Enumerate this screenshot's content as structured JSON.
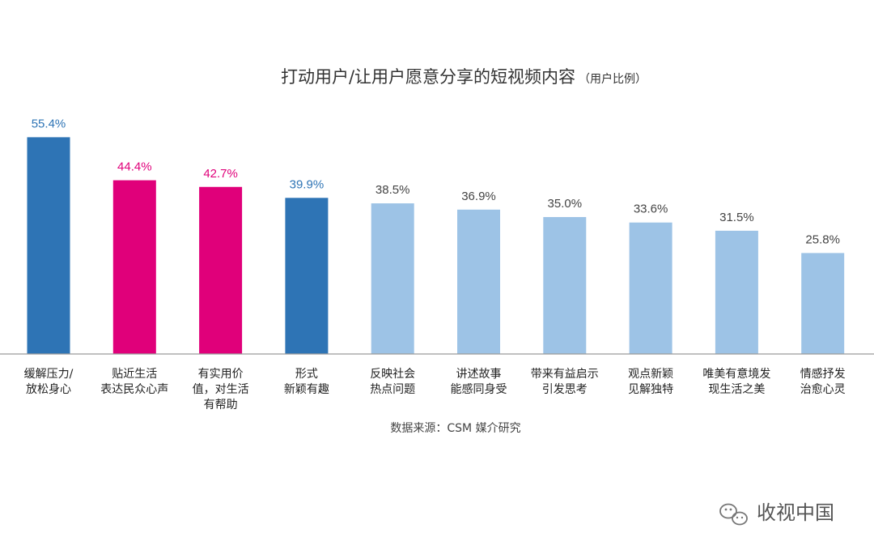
{
  "chart_data": {
    "type": "bar",
    "title": "打动用户/让用户愿意分享的短视频内容",
    "title_note": "（用户比例）",
    "categories": [
      [
        "缓解压力/",
        "放松身心"
      ],
      [
        "贴近生活",
        "表达民众心声"
      ],
      [
        "有实用价",
        "值，对生活",
        "有帮助"
      ],
      [
        "形式",
        "新颖有趣"
      ],
      [
        "反映社会",
        "热点问题"
      ],
      [
        "讲述故事",
        "能感同身受"
      ],
      [
        "带来有益启示",
        "引发思考"
      ],
      [
        "观点新颖",
        "见解独特"
      ],
      [
        "唯美有意境发",
        "现生活之美"
      ],
      [
        "情感抒发",
        "治愈心灵"
      ]
    ],
    "values": [
      55.4,
      44.4,
      42.7,
      39.9,
      38.5,
      36.9,
      35.0,
      33.6,
      31.5,
      25.8
    ],
    "value_labels": [
      "55.4%",
      "44.4%",
      "42.7%",
      "39.9%",
      "38.5%",
      "36.9%",
      "35.0%",
      "33.6%",
      "31.5%",
      "25.8%"
    ],
    "bar_colors": [
      "#2e74b5",
      "#e0007a",
      "#e0007a",
      "#2e74b5",
      "#9dc3e6",
      "#9dc3e6",
      "#9dc3e6",
      "#9dc3e6",
      "#9dc3e6",
      "#9dc3e6"
    ],
    "label_colors": [
      "#2e74b5",
      "#e0007a",
      "#e0007a",
      "#2e74b5",
      "#444444",
      "#444444",
      "#444444",
      "#444444",
      "#444444",
      "#444444"
    ],
    "ylim": [
      0,
      60
    ],
    "grid": false,
    "legend": "none",
    "xlabel": "",
    "ylabel": ""
  },
  "source": "数据来源：CSM 媒介研究",
  "watermark": {
    "text": "收视中国",
    "icon": "wechat-icon"
  }
}
